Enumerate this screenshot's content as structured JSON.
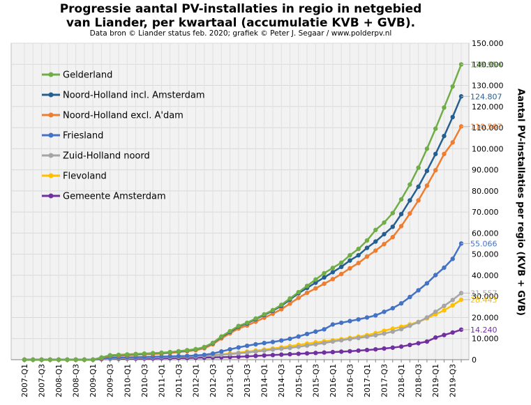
{
  "header": {
    "title_line1": "Progressie aantal PV-installaties  in regio in netgebied",
    "title_line2": "van Liander, per kwartaal (accumulatie  KVB + GVB).",
    "subtitle": "Data bron © Liander status feb. 2020; grafiek © Peter J. Segaar / www.polderpv.nl"
  },
  "chart_data": {
    "type": "line",
    "title": "Progressie aantal PV-installaties  in regio in netgebied van Liander, per kwartaal (accumulatie  KVB + GVB).",
    "ylabel": "Aantal PV-installaties per regio (KVB + GVB)",
    "xlabel": "",
    "ylim": [
      0,
      150000
    ],
    "y_ticks": [
      "0",
      "10.000",
      "20.000",
      "30.000",
      "40.000",
      "50.000",
      "60.000",
      "70.000",
      "80.000",
      "90.000",
      "100.000",
      "110.000",
      "120.000",
      "130.000",
      "140.000",
      "150.000"
    ],
    "x": [
      "2007-Q1",
      "2007-Q2",
      "2007-Q3",
      "2007-Q4",
      "2008-Q1",
      "2008-Q2",
      "2008-Q3",
      "2008-Q4",
      "2009-Q1",
      "2009-Q2",
      "2009-Q3",
      "2009-Q4",
      "2010-Q1",
      "2010-Q2",
      "2010-Q3",
      "2010-Q4",
      "2011-Q1",
      "2011-Q2",
      "2011-Q3",
      "2011-Q4",
      "2012-Q1",
      "2012-Q2",
      "2012-Q3",
      "2012-Q4",
      "2013-Q1",
      "2013-Q2",
      "2013-Q3",
      "2013-Q4",
      "2014-Q1",
      "2014-Q2",
      "2014-Q3",
      "2014-Q4",
      "2015-Q1",
      "2015-Q2",
      "2015-Q3",
      "2015-Q4",
      "2016-Q1",
      "2016-Q2",
      "2016-Q3",
      "2016-Q4",
      "2017-Q1",
      "2017-Q2",
      "2017-Q3",
      "2017-Q4",
      "2018-Q1",
      "2018-Q2",
      "2018-Q3",
      "2018-Q4",
      "2019-Q1",
      "2019-Q2",
      "2019-Q3",
      "2019-Q4"
    ],
    "x_tick_labels": [
      "2007-Q1",
      "2007-Q3",
      "2008-Q1",
      "2008-Q3",
      "2009-Q1",
      "2009-Q3",
      "2010-Q1",
      "2010-Q3",
      "2011-Q1",
      "2011-Q3",
      "2012-Q1",
      "2012-Q3",
      "2013-Q1",
      "2013-Q3",
      "2014-Q1",
      "2014-Q3",
      "2015-Q1",
      "2015-Q3",
      "2016-Q1",
      "2016-Q3",
      "2017-Q1",
      "2017-Q3",
      "2018-Q1",
      "2018-Q3",
      "2019-Q1",
      "2019-Q3"
    ],
    "legend_position": "top-left",
    "grid": true,
    "series": [
      {
        "name": "Gelderland",
        "color": "#70ad47",
        "end_label": "139.954",
        "values": [
          0,
          0,
          0,
          0,
          0,
          0,
          0,
          0,
          0,
          1000,
          2100,
          2300,
          2500,
          2700,
          2900,
          3100,
          3300,
          3600,
          4000,
          4500,
          5000,
          6000,
          8000,
          11000,
          13500,
          16000,
          17500,
          19500,
          21500,
          23500,
          26000,
          29000,
          32000,
          35000,
          38000,
          41000,
          43500,
          46000,
          49500,
          52500,
          56500,
          61500,
          65000,
          69500,
          76000,
          83000,
          91000,
          100000,
          109500,
          119500,
          129500,
          139954
        ]
      },
      {
        "name": "Noord-Holland incl. Amsterdam",
        "color": "#255e91",
        "end_label": "124.807",
        "values": [
          0,
          0,
          0,
          0,
          0,
          0,
          0,
          0,
          0,
          1000,
          2000,
          2200,
          2400,
          2600,
          2800,
          3000,
          3200,
          3500,
          3900,
          4400,
          4900,
          5900,
          7800,
          10800,
          13200,
          15700,
          17200,
          19200,
          21200,
          23200,
          25500,
          28500,
          31500,
          34000,
          36500,
          39000,
          41500,
          44000,
          47000,
          49500,
          53000,
          56000,
          59500,
          63000,
          69000,
          75500,
          82000,
          89500,
          97500,
          106000,
          115000,
          124807
        ]
      },
      {
        "name": "Noord-Holland excl. A'dam",
        "color": "#ed7d31",
        "end_label": "110.567",
        "values": [
          0,
          0,
          0,
          0,
          0,
          0,
          0,
          0,
          0,
          800,
          1700,
          1900,
          2100,
          2300,
          2500,
          2700,
          2900,
          3200,
          3600,
          4000,
          4500,
          5400,
          7300,
          10100,
          12500,
          14800,
          16200,
          18000,
          19900,
          21800,
          23900,
          26600,
          29300,
          31700,
          33800,
          36000,
          38200,
          40600,
          43300,
          45800,
          48900,
          51700,
          54800,
          58100,
          63300,
          69300,
          75500,
          82500,
          89800,
          97500,
          103000,
          110567
        ]
      },
      {
        "name": "Friesland",
        "color": "#4472c4",
        "end_label": "55.066",
        "values": [
          0,
          0,
          0,
          0,
          0,
          0,
          0,
          0,
          0,
          400,
          900,
          1000,
          1100,
          1200,
          1300,
          1400,
          1500,
          1600,
          1700,
          1800,
          2000,
          2300,
          2900,
          3900,
          4900,
          5800,
          6600,
          7300,
          7900,
          8400,
          9100,
          9900,
          11000,
          12200,
          13300,
          14400,
          16700,
          17500,
          18300,
          19100,
          20000,
          21000,
          22700,
          24400,
          26700,
          29700,
          32900,
          36200,
          40100,
          43600,
          47800,
          55066
        ]
      },
      {
        "name": "Zuid-Holland noord",
        "color": "#a5a5a5",
        "end_label": "31.557",
        "values": [
          0,
          0,
          0,
          0,
          0,
          0,
          0,
          0,
          0,
          300,
          600,
          700,
          800,
          900,
          1000,
          1100,
          1200,
          1300,
          1400,
          1500,
          1600,
          1800,
          2000,
          2300,
          2600,
          3000,
          3400,
          3800,
          4300,
          4800,
          5200,
          5600,
          6100,
          6700,
          7300,
          7900,
          8600,
          9200,
          9800,
          10300,
          10900,
          11600,
          12400,
          13300,
          14500,
          16100,
          17800,
          20000,
          22700,
          25500,
          28300,
          31557
        ]
      },
      {
        "name": "Flevoland",
        "color": "#ffc000",
        "end_label": "28.443",
        "values": [
          0,
          0,
          0,
          0,
          0,
          0,
          0,
          0,
          0,
          300,
          600,
          700,
          800,
          900,
          1000,
          1100,
          1200,
          1300,
          1400,
          1500,
          1600,
          1900,
          2200,
          2500,
          2900,
          3300,
          3800,
          4300,
          4800,
          5300,
          5800,
          6400,
          7000,
          7600,
          8200,
          8700,
          9200,
          9700,
          10300,
          10900,
          11600,
          12600,
          13700,
          14700,
          15600,
          16700,
          17900,
          19600,
          21500,
          23400,
          25800,
          28443
        ]
      },
      {
        "name": "Gemeente Amsterdam",
        "color": "#7030a0",
        "end_label": "14.240",
        "values": [
          0,
          0,
          0,
          0,
          0,
          0,
          0,
          0,
          0,
          200,
          400,
          400,
          500,
          500,
          600,
          600,
          700,
          700,
          800,
          800,
          900,
          1000,
          1100,
          1200,
          1300,
          1400,
          1600,
          1800,
          2000,
          2200,
          2400,
          2600,
          2800,
          3000,
          3200,
          3400,
          3600,
          3800,
          4000,
          4300,
          4600,
          4900,
          5300,
          5700,
          6200,
          7000,
          7800,
          8600,
          10500,
          11700,
          12900,
          14240
        ]
      }
    ]
  }
}
